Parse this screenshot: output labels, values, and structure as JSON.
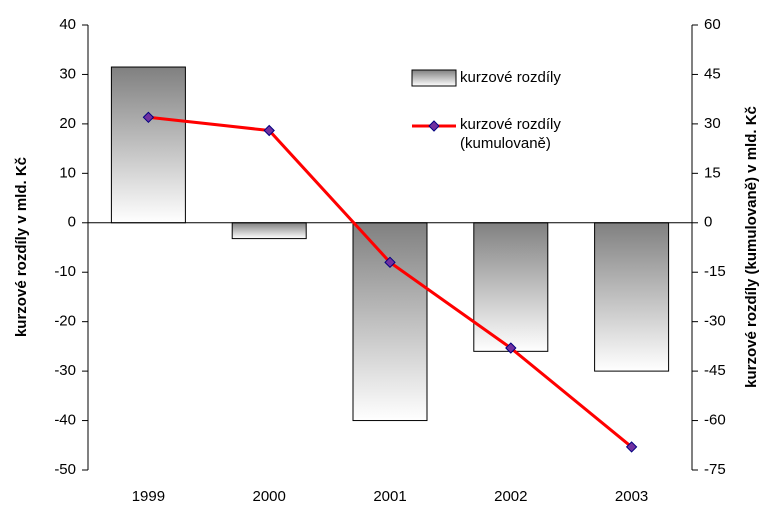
{
  "chart_data": {
    "type": "bar-line",
    "categories": [
      "1999",
      "2000",
      "2001",
      "2002",
      "2003"
    ],
    "series": [
      {
        "name": "kurzové rozdíly",
        "type": "bar",
        "color": "#808080",
        "values": [
          31.5,
          -3.2,
          -40,
          -26,
          -30
        ]
      },
      {
        "name": "kurzové rozdíly (kumulovaně)",
        "type": "line",
        "axis": "y2",
        "color": "#ff0000",
        "marker_color": "#7030a0",
        "values": [
          32,
          28,
          -12,
          -38,
          -68
        ]
      }
    ],
    "ylabel": "kurzové rozdíly v mld. Kč",
    "y2label": "kurzové rozdíly (kumulovaně) v mld. Kč",
    "ylim": [
      -50,
      40
    ],
    "yticks": [
      -50,
      -40,
      -30,
      -20,
      -10,
      0,
      10,
      20,
      30,
      40
    ],
    "y2lim": [
      -75,
      60
    ],
    "y2ticks": [
      -75,
      -60,
      -45,
      -30,
      -15,
      0,
      15,
      30,
      45,
      60
    ],
    "grid": false
  }
}
